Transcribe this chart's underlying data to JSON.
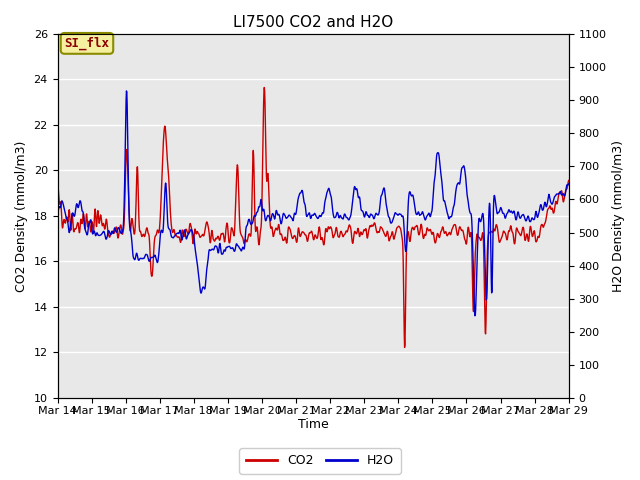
{
  "title": "LI7500 CO2 and H2O",
  "xlabel": "Time",
  "ylabel_left": "CO2 Density (mmol/m3)",
  "ylabel_right": "H2O Density (mmol/m3)",
  "ylim_left": [
    10,
    26
  ],
  "ylim_right": [
    0,
    1100
  ],
  "yticks_left": [
    10,
    12,
    14,
    16,
    18,
    20,
    22,
    24,
    26
  ],
  "yticks_right": [
    0,
    100,
    200,
    300,
    400,
    500,
    600,
    700,
    800,
    900,
    1000,
    1100
  ],
  "xtick_labels": [
    "Mar 14",
    "Mar 15",
    "Mar 16",
    "Mar 17",
    "Mar 18",
    "Mar 19",
    "Mar 20",
    "Mar 21",
    "Mar 22",
    "Mar 23",
    "Mar 24",
    "Mar 25",
    "Mar 26",
    "Mar 27",
    "Mar 28",
    "Mar 29"
  ],
  "co2_color": "#cc0000",
  "h2o_color": "#0000cc",
  "legend_co2": "CO2",
  "legend_h2o": "H2O",
  "si_flx_label": "SI_flx",
  "plot_bg_color": "#e8e8e8",
  "title_fontsize": 11,
  "axis_label_fontsize": 9,
  "tick_fontsize": 8,
  "line_width": 1.0
}
